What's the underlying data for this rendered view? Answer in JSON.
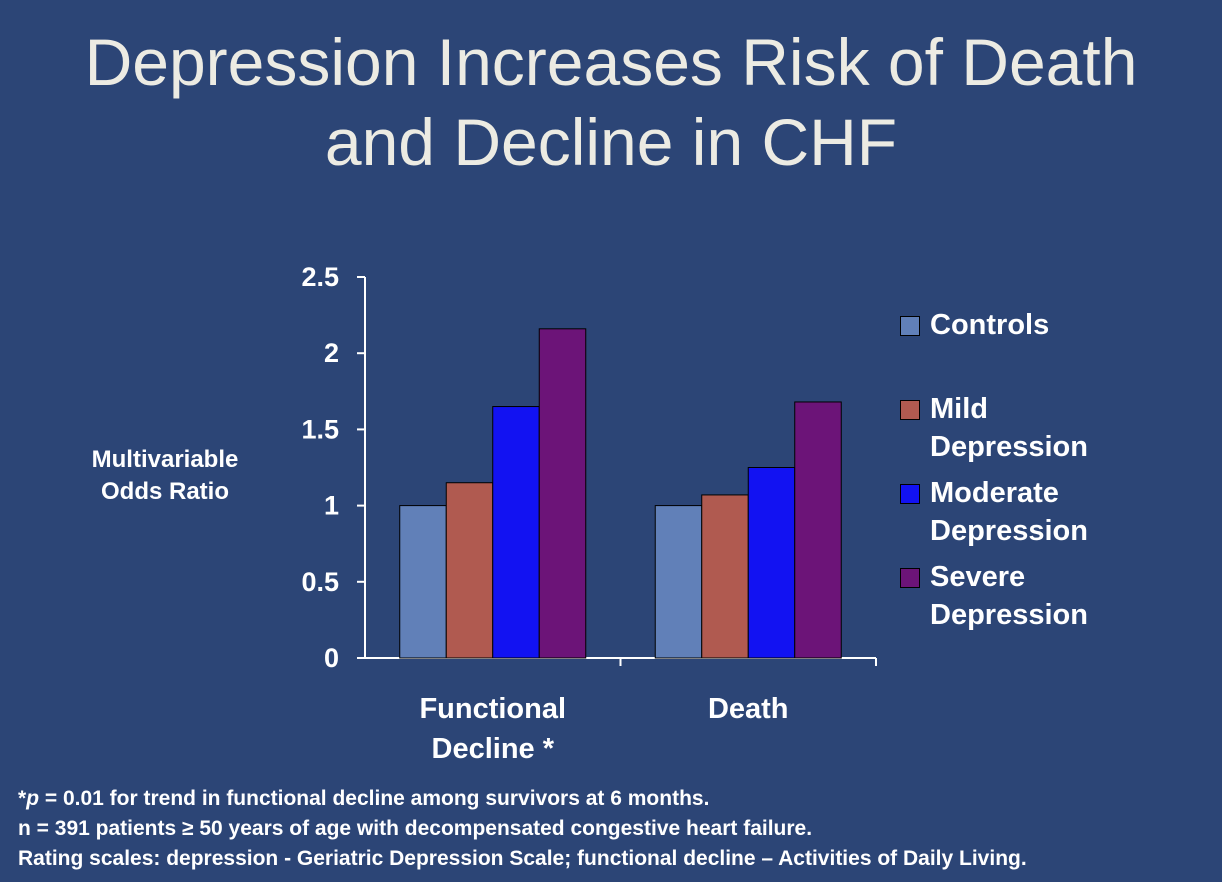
{
  "slide": {
    "title_line1": "Depression Increases Risk of Death",
    "title_line2": "and Decline in CHF",
    "footnote_p_symbol": "p",
    "footnote_line1_prefix": "*",
    "footnote_line1_rest": " = 0.01 for trend in functional decline among survivors at 6 months.",
    "footnote_line2": "n = 391 patients ≥ 50 years of age with decompensated congestive heart failure.",
    "footnote_line3": "Rating scales:  depression - Geriatric Depression Scale; functional decline – Activities of Daily Living."
  },
  "chart_data": {
    "type": "bar",
    "title": "",
    "ylabel_line1": "Multivariable",
    "ylabel_line2": "Odds Ratio",
    "xlabel": "",
    "ylim": [
      0,
      2.5
    ],
    "yticks": [
      "0",
      "0.5",
      "1",
      "1.5",
      "2",
      "2.5"
    ],
    "ytick_values": [
      0,
      0.5,
      1,
      1.5,
      2,
      2.5
    ],
    "categories": [
      "Functional\nDecline *",
      "Death"
    ],
    "legend_position": "right",
    "series": [
      {
        "name": "Controls",
        "legend_label": "Controls",
        "color": "#6180b8",
        "values": [
          1.0,
          1.0
        ]
      },
      {
        "name": "Mild Depression",
        "legend_label": "Mild\nDepression",
        "color": "#b05a50",
        "values": [
          1.15,
          1.07
        ]
      },
      {
        "name": "Moderate Depression",
        "legend_label": "Moderate\nDepression",
        "color": "#1212f2",
        "values": [
          1.65,
          1.25
        ]
      },
      {
        "name": "Severe Depression",
        "legend_label": "Severe\nDepression",
        "color": "#6c1478",
        "values": [
          2.16,
          1.68
        ]
      }
    ]
  }
}
